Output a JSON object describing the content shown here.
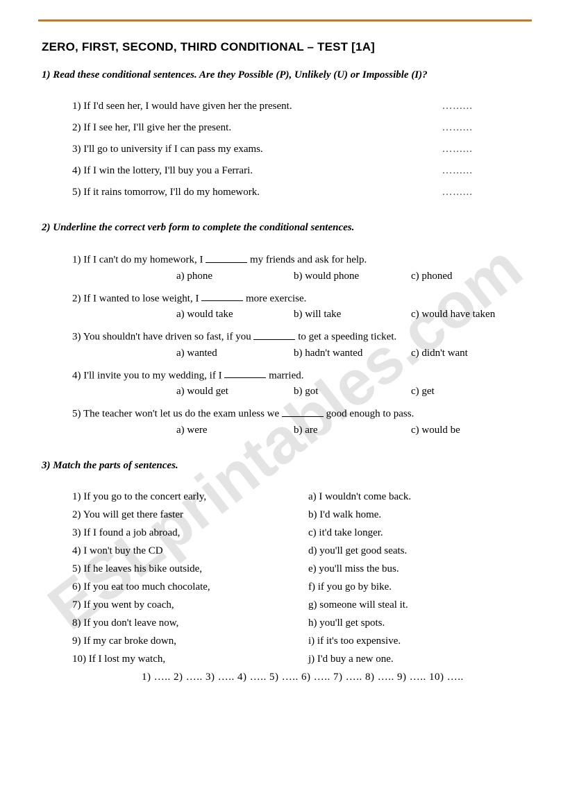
{
  "colors": {
    "rule": "#b87d3b",
    "text": "#000000",
    "background": "#ffffff",
    "watermark_opacity": 0.1
  },
  "fonts": {
    "title_family": "Arial",
    "body_family": "Times New Roman",
    "title_size_pt": 13,
    "body_size_pt": 11
  },
  "watermark": "ESLprintables.com",
  "title": "ZERO, FIRST, SECOND, THIRD CONDITIONAL – TEST [1A]",
  "section1": {
    "heading": "1) Read these conditional sentences. Are they Possible (P), Unlikely (U) or Impossible (I)?",
    "items": [
      "1)  If I'd seen her, I would have given her the present.",
      "2)  If I see her, I'll give her the present.",
      "3)  I'll go to university if I can pass my exams.",
      "4)  If I win the lottery, I'll buy you a Ferrari.",
      "5)  If it rains tomorrow, I'll do my homework."
    ],
    "blank": "…......"
  },
  "section2": {
    "heading": "2) Underline the correct verb form to complete the conditional sentences.",
    "items": [
      {
        "stem_before": "1)  If I can't do my homework, I ",
        "stem_after": " my friends and ask for help.",
        "a": "a) phone",
        "b": "b) would phone",
        "c": "c) phoned"
      },
      {
        "stem_before": "2)  If I wanted to lose weight, I ",
        "stem_after": " more exercise.",
        "a": "a) would take",
        "b": "b) will take",
        "c": "c) would have taken"
      },
      {
        "stem_before": "3)  You shouldn't have driven so fast, if you ",
        "stem_after": " to get a speeding ticket.",
        "a": "a) wanted",
        "b": "b) hadn't wanted",
        "c": "c) didn't want"
      },
      {
        "stem_before": "4)  I'll invite you to my wedding, if I ",
        "stem_after": " married.",
        "a": "a) would get",
        "b": "b) got",
        "c": "c) get"
      },
      {
        "stem_before": "5)  The teacher won't let us do the exam unless we ",
        "stem_after": " good enough to pass.",
        "a": "a) were",
        "b": "b) are",
        "c": "c) would be"
      }
    ]
  },
  "section3": {
    "heading": "3) Match the parts of sentences.",
    "rows": [
      {
        "l": "1) If you go to the concert early,",
        "r": "a) I wouldn't come back."
      },
      {
        "l": "2) You will get there faster",
        "r": "b) I'd walk home."
      },
      {
        "l": "3) If I found a job abroad,",
        "r": "c) it'd take longer."
      },
      {
        "l": "4) I won't buy the CD",
        "r": "d) you'll get good seats."
      },
      {
        "l": "5) If he leaves his bike outside,",
        "r": "e) you'll miss the bus."
      },
      {
        "l": "6) If you eat too much chocolate,",
        "r": "f) if you go by bike."
      },
      {
        "l": "7) If you went by coach,",
        "r": "g) someone will steal it."
      },
      {
        "l": "8) If you don't leave now,",
        "r": "h) you'll get spots."
      },
      {
        "l": "9) If my car broke down,",
        "r": "i) if it's too expensive."
      },
      {
        "l": "10) If I lost my watch,",
        "r": "j) I'd buy a new one."
      }
    ],
    "answers_line": "1) ….. 2) ….. 3) ….. 4) ….. 5) ….. 6) ….. 7) ….. 8) ….. 9) ….. 10) ….."
  }
}
